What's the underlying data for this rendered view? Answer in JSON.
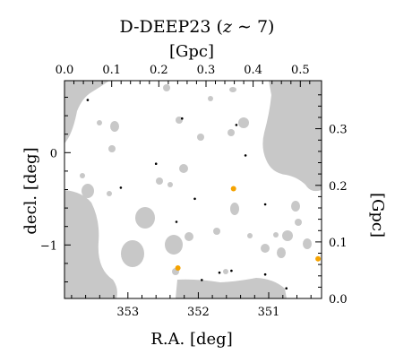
{
  "chart_data": {
    "type": "scatter",
    "title": "D-DEEP23 (",
    "title_math": "z",
    "title_tail": " ∼ 7)",
    "xlabel": "R.A. [deg]",
    "ylabel": "decl. [deg]",
    "top_xlabel": "[Gpc]",
    "right_ylabel": "[Gpc]",
    "x_range": [
      353.9,
      350.25
    ],
    "y_range": [
      -1.58,
      0.78
    ],
    "top_range": [
      0.0,
      0.545
    ],
    "right_range": [
      0.0,
      0.385
    ],
    "x_ticks": [
      353,
      352,
      351
    ],
    "x_tick_labels": [
      "353",
      "352",
      "351"
    ],
    "y_ticks": [
      0,
      -1
    ],
    "y_tick_labels": [
      "0",
      "−1"
    ],
    "top_ticks": [
      0.0,
      0.1,
      0.2,
      0.3,
      0.4,
      0.5
    ],
    "top_tick_labels": [
      "0.0",
      "0.1",
      "0.2",
      "0.3",
      "0.4",
      "0.5"
    ],
    "right_ticks": [
      0.0,
      0.1,
      0.2,
      0.3
    ],
    "right_tick_labels": [
      "0.0",
      "0.1",
      "0.2",
      "0.3"
    ],
    "grid": false,
    "colors": {
      "mask": "#c8c8c8",
      "sources": "#000000",
      "highlighted": "#f5a300"
    },
    "series": [
      {
        "role": "sources",
        "x": [
          353.57,
          352.23,
          351.46,
          351.33,
          353.1,
          352.05,
          351.05,
          352.31,
          351.95,
          351.7,
          351.53,
          351.05,
          350.75,
          352.6
        ],
        "y": [
          0.57,
          0.37,
          0.3,
          -0.03,
          -0.38,
          -0.5,
          -0.56,
          -0.75,
          -1.38,
          -1.3,
          -1.28,
          -1.32,
          -1.47,
          -0.12
        ],
        "sizes": [
          2.5,
          2.5,
          2.5,
          2.5,
          2.5,
          2.5,
          2.5,
          2.5,
          2.5,
          2.5,
          2.5,
          2.5,
          2.5,
          2.5
        ]
      },
      {
        "role": "highlighted",
        "x": [
          351.5,
          352.29,
          350.3
        ],
        "y": [
          -0.39,
          -1.25,
          -1.15
        ],
        "sizes": [
          6,
          6,
          6
        ]
      }
    ]
  }
}
